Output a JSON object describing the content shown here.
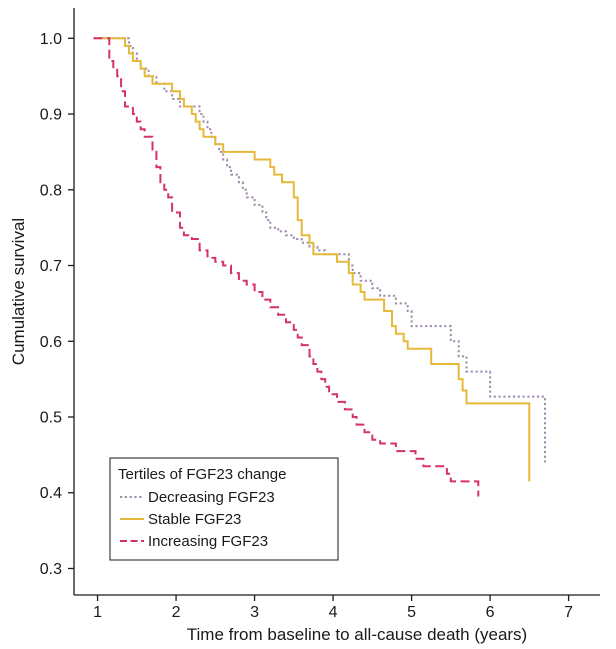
{
  "chart_data": {
    "type": "line",
    "subtype": "kaplan-meier step",
    "xlabel": "Time from baseline to all-cause death (years)",
    "ylabel": "Cumulative survival",
    "xlim": [
      0.7,
      7.4
    ],
    "ylim": [
      0.265,
      1.04
    ],
    "xticks": [
      "1",
      "2",
      "3",
      "4",
      "5",
      "6",
      "7"
    ],
    "yticks": [
      "0.3",
      "0.4",
      "0.5",
      "0.6",
      "0.7",
      "0.8",
      "0.9",
      "1.0"
    ],
    "grid": false,
    "legend": {
      "title": "Tertiles of FGF23 change",
      "position": "bottom-left"
    },
    "series": [
      {
        "name": "Decreasing FGF23",
        "color": "#a08bab",
        "style": "dotted",
        "points": [
          [
            0.95,
            1.0
          ],
          [
            1.35,
            1.0
          ],
          [
            1.4,
            0.99
          ],
          [
            1.45,
            0.98
          ],
          [
            1.5,
            0.97
          ],
          [
            1.55,
            0.96
          ],
          [
            1.65,
            0.95
          ],
          [
            1.75,
            0.94
          ],
          [
            1.85,
            0.93
          ],
          [
            1.95,
            0.92
          ],
          [
            2.05,
            0.91
          ],
          [
            2.25,
            0.91
          ],
          [
            2.3,
            0.9
          ],
          [
            2.35,
            0.89
          ],
          [
            2.4,
            0.88
          ],
          [
            2.45,
            0.87
          ],
          [
            2.5,
            0.86
          ],
          [
            2.55,
            0.85
          ],
          [
            2.6,
            0.84
          ],
          [
            2.65,
            0.83
          ],
          [
            2.7,
            0.82
          ],
          [
            2.8,
            0.81
          ],
          [
            2.85,
            0.8
          ],
          [
            2.9,
            0.79
          ],
          [
            3.0,
            0.78
          ],
          [
            3.1,
            0.77
          ],
          [
            3.15,
            0.76
          ],
          [
            3.2,
            0.75
          ],
          [
            3.3,
            0.745
          ],
          [
            3.4,
            0.74
          ],
          [
            3.5,
            0.735
          ],
          [
            3.6,
            0.73
          ],
          [
            3.7,
            0.725
          ],
          [
            3.8,
            0.72
          ],
          [
            3.9,
            0.715
          ],
          [
            4.1,
            0.715
          ],
          [
            4.2,
            0.7
          ],
          [
            4.25,
            0.69
          ],
          [
            4.35,
            0.68
          ],
          [
            4.5,
            0.67
          ],
          [
            4.6,
            0.66
          ],
          [
            4.8,
            0.65
          ],
          [
            4.95,
            0.64
          ],
          [
            5.0,
            0.62
          ],
          [
            5.45,
            0.62
          ],
          [
            5.5,
            0.6
          ],
          [
            5.6,
            0.58
          ],
          [
            5.7,
            0.56
          ],
          [
            5.95,
            0.56
          ],
          [
            6.0,
            0.527
          ],
          [
            6.7,
            0.527
          ],
          [
            6.7,
            0.44
          ]
        ]
      },
      {
        "name": "Stable FGF23",
        "color": "#e6b93a",
        "style": "solid",
        "points": [
          [
            0.95,
            1.0
          ],
          [
            1.3,
            1.0
          ],
          [
            1.35,
            0.99
          ],
          [
            1.4,
            0.98
          ],
          [
            1.45,
            0.97
          ],
          [
            1.55,
            0.96
          ],
          [
            1.6,
            0.95
          ],
          [
            1.7,
            0.94
          ],
          [
            1.9,
            0.94
          ],
          [
            1.95,
            0.93
          ],
          [
            2.05,
            0.92
          ],
          [
            2.1,
            0.91
          ],
          [
            2.2,
            0.9
          ],
          [
            2.25,
            0.89
          ],
          [
            2.3,
            0.88
          ],
          [
            2.35,
            0.87
          ],
          [
            2.45,
            0.87
          ],
          [
            2.5,
            0.86
          ],
          [
            2.6,
            0.85
          ],
          [
            2.95,
            0.85
          ],
          [
            3.0,
            0.84
          ],
          [
            3.15,
            0.84
          ],
          [
            3.2,
            0.83
          ],
          [
            3.25,
            0.82
          ],
          [
            3.35,
            0.81
          ],
          [
            3.45,
            0.81
          ],
          [
            3.5,
            0.79
          ],
          [
            3.55,
            0.76
          ],
          [
            3.6,
            0.74
          ],
          [
            3.7,
            0.73
          ],
          [
            3.75,
            0.715
          ],
          [
            4.0,
            0.715
          ],
          [
            4.05,
            0.705
          ],
          [
            4.15,
            0.705
          ],
          [
            4.2,
            0.69
          ],
          [
            4.25,
            0.675
          ],
          [
            4.35,
            0.665
          ],
          [
            4.4,
            0.655
          ],
          [
            4.6,
            0.655
          ],
          [
            4.65,
            0.64
          ],
          [
            4.75,
            0.62
          ],
          [
            4.8,
            0.61
          ],
          [
            4.9,
            0.6
          ],
          [
            4.95,
            0.59
          ],
          [
            5.2,
            0.59
          ],
          [
            5.25,
            0.57
          ],
          [
            5.55,
            0.57
          ],
          [
            5.6,
            0.55
          ],
          [
            5.65,
            0.535
          ],
          [
            5.7,
            0.518
          ],
          [
            6.5,
            0.518
          ],
          [
            6.5,
            0.415
          ]
        ]
      },
      {
        "name": "Increasing FGF23",
        "color": "#d6306e",
        "style": "dashed",
        "points": [
          [
            0.95,
            1.0
          ],
          [
            1.1,
            1.0
          ],
          [
            1.15,
            0.97
          ],
          [
            1.2,
            0.96
          ],
          [
            1.25,
            0.95
          ],
          [
            1.3,
            0.93
          ],
          [
            1.35,
            0.91
          ],
          [
            1.45,
            0.9
          ],
          [
            1.5,
            0.89
          ],
          [
            1.55,
            0.88
          ],
          [
            1.6,
            0.87
          ],
          [
            1.7,
            0.85
          ],
          [
            1.75,
            0.83
          ],
          [
            1.8,
            0.81
          ],
          [
            1.85,
            0.8
          ],
          [
            1.9,
            0.79
          ],
          [
            1.95,
            0.77
          ],
          [
            2.05,
            0.75
          ],
          [
            2.1,
            0.74
          ],
          [
            2.2,
            0.735
          ],
          [
            2.3,
            0.72
          ],
          [
            2.4,
            0.71
          ],
          [
            2.5,
            0.705
          ],
          [
            2.6,
            0.7
          ],
          [
            2.7,
            0.69
          ],
          [
            2.8,
            0.68
          ],
          [
            2.9,
            0.675
          ],
          [
            3.0,
            0.665
          ],
          [
            3.1,
            0.655
          ],
          [
            3.2,
            0.645
          ],
          [
            3.3,
            0.635
          ],
          [
            3.4,
            0.625
          ],
          [
            3.5,
            0.615
          ],
          [
            3.55,
            0.605
          ],
          [
            3.6,
            0.595
          ],
          [
            3.7,
            0.58
          ],
          [
            3.75,
            0.57
          ],
          [
            3.8,
            0.56
          ],
          [
            3.85,
            0.55
          ],
          [
            3.9,
            0.54
          ],
          [
            3.95,
            0.53
          ],
          [
            4.05,
            0.52
          ],
          [
            4.15,
            0.51
          ],
          [
            4.25,
            0.5
          ],
          [
            4.3,
            0.49
          ],
          [
            4.4,
            0.48
          ],
          [
            4.5,
            0.47
          ],
          [
            4.6,
            0.465
          ],
          [
            4.8,
            0.455
          ],
          [
            4.95,
            0.455
          ],
          [
            5.05,
            0.445
          ],
          [
            5.15,
            0.435
          ],
          [
            5.35,
            0.435
          ],
          [
            5.45,
            0.425
          ],
          [
            5.5,
            0.415
          ],
          [
            5.85,
            0.415
          ],
          [
            5.85,
            0.395
          ]
        ]
      }
    ]
  }
}
